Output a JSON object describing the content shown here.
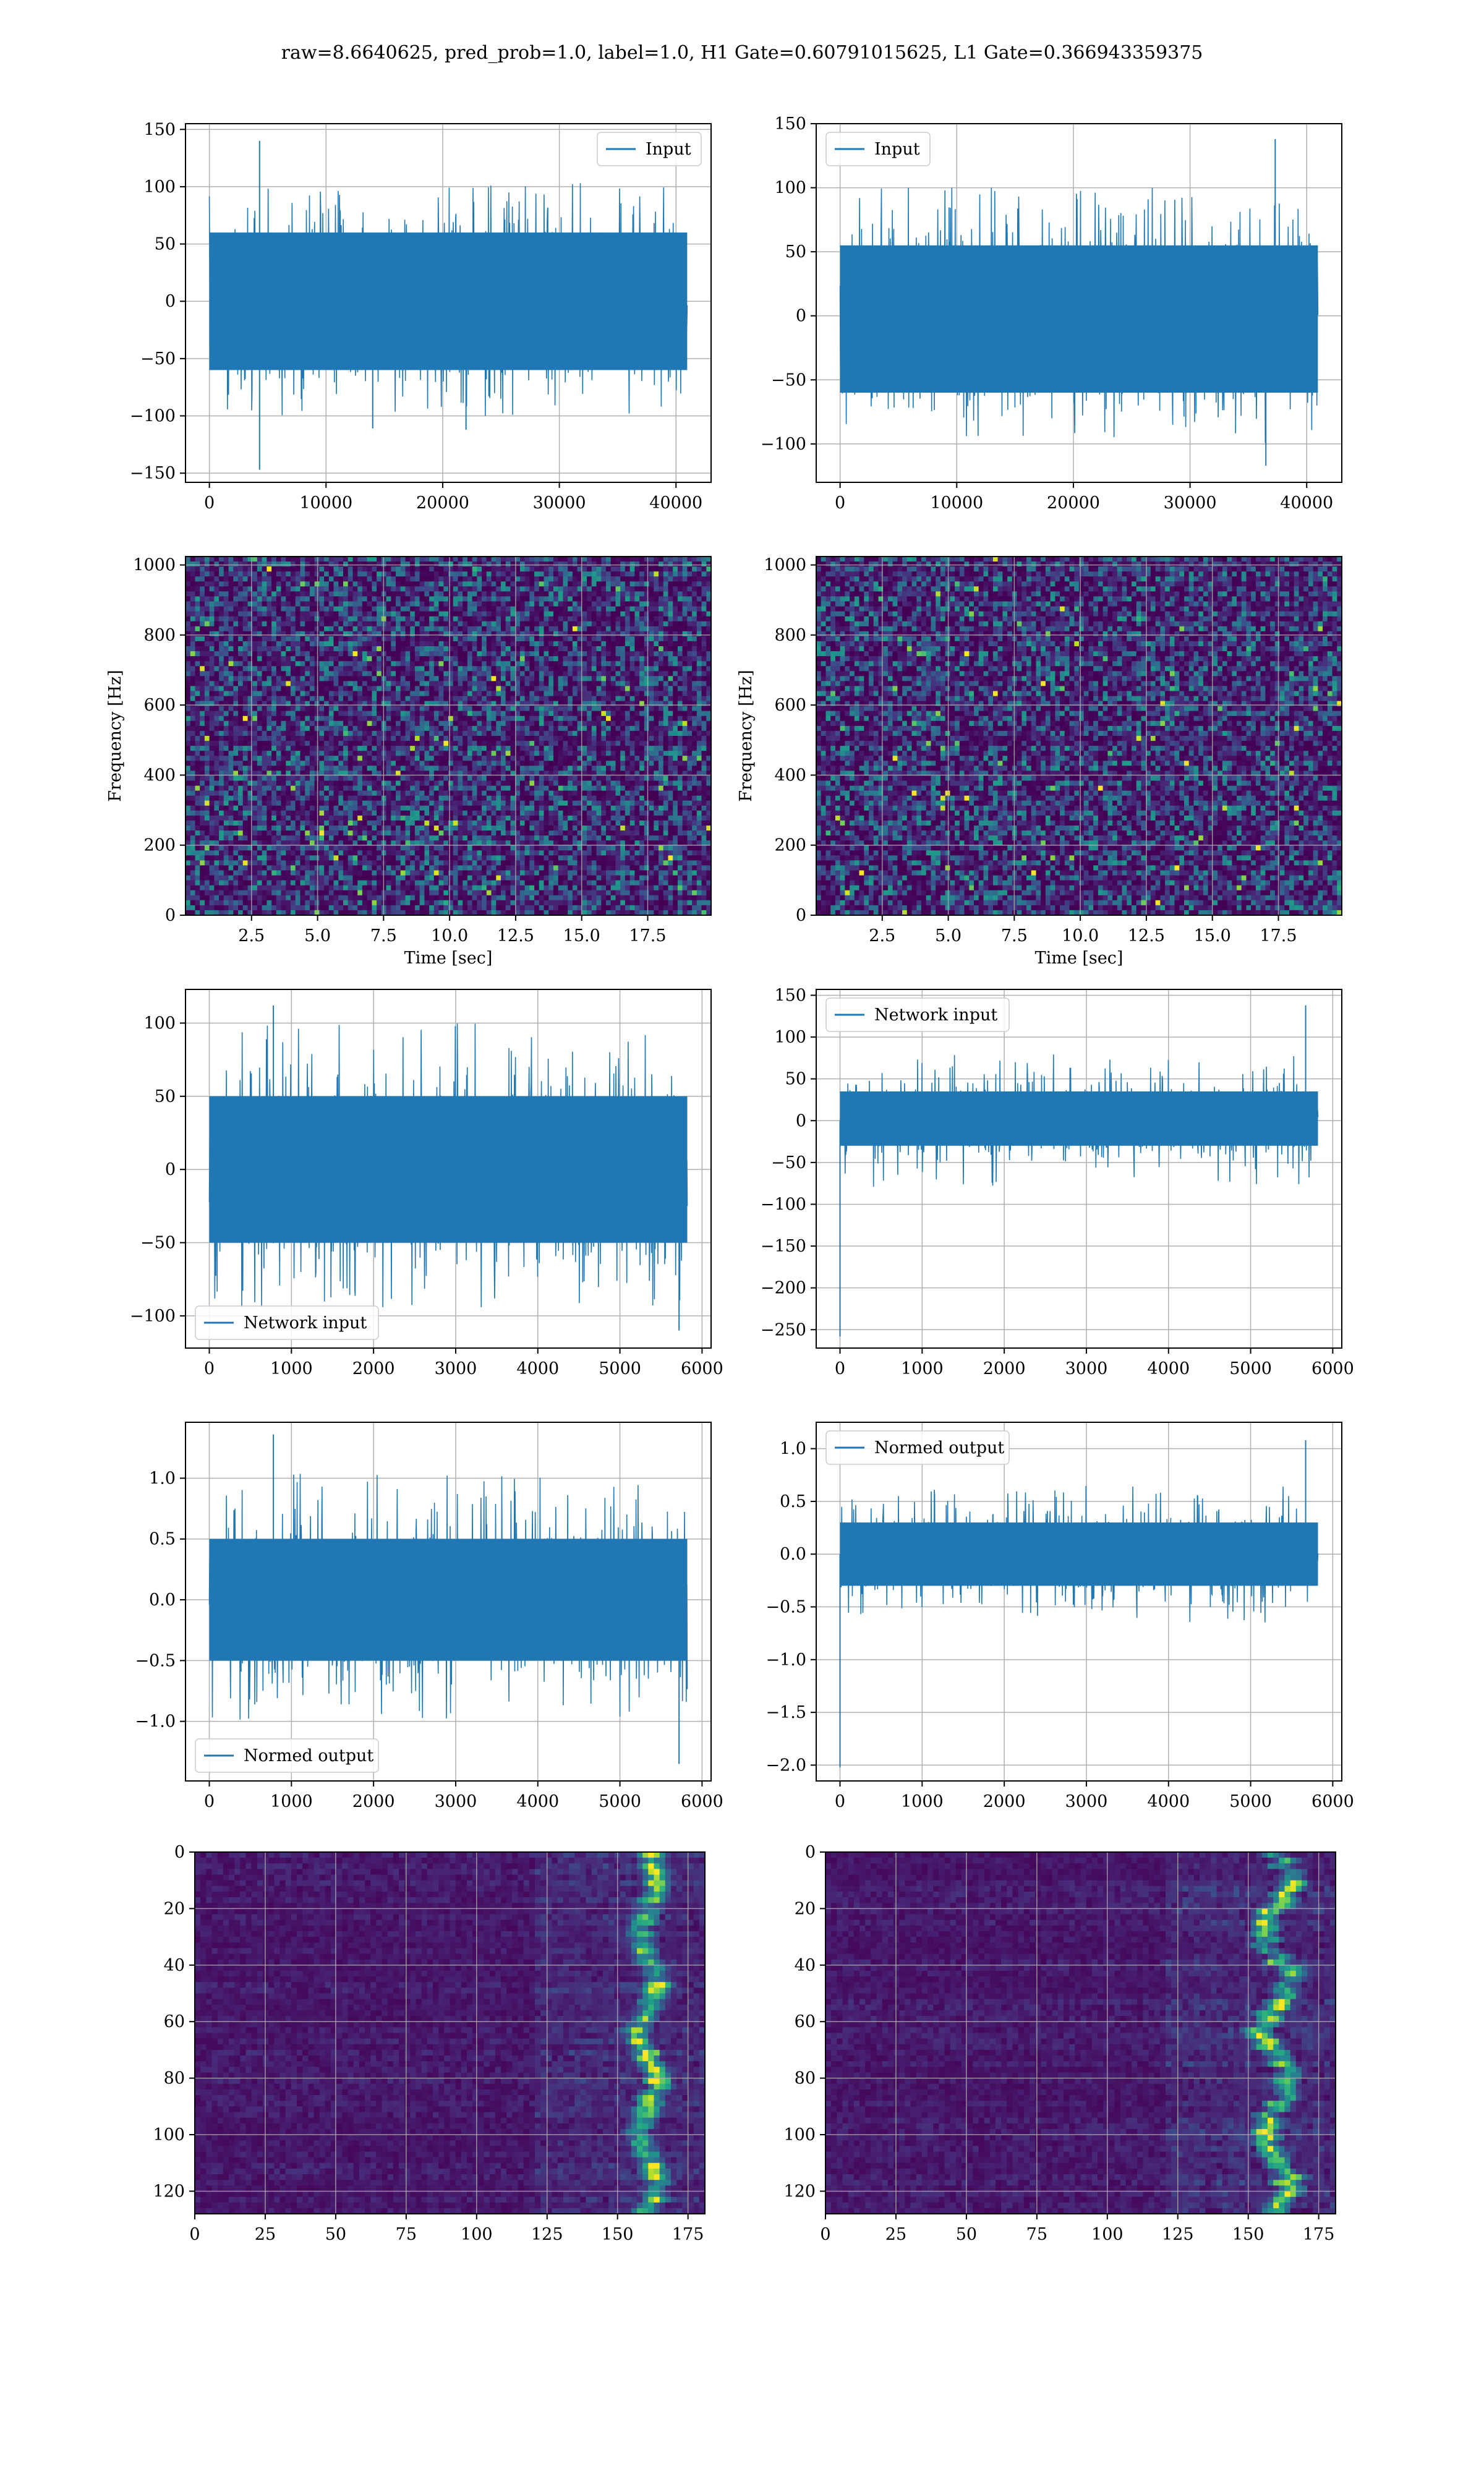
{
  "figure": {
    "title": "raw=8.6640625, pred_prob=1.0, label=1.0, H1 Gate=0.60791015625, L1 Gate=0.366943359375"
  },
  "colors": {
    "line": "#1f77b4",
    "grid": "#b0b0b0",
    "viridis_low": "#440154",
    "viridis_high": "#fde725"
  },
  "chart_data": [
    {
      "id": "h1-input",
      "type": "line",
      "title": "",
      "xlabel": "",
      "ylabel": "",
      "legend": {
        "label": "Input",
        "loc": "upper right"
      },
      "xlim": [
        -2048,
        43008
      ],
      "ylim": [
        -158,
        155
      ],
      "xticks": [
        0,
        10000,
        20000,
        30000,
        40000
      ],
      "yticks": [
        -150,
        -100,
        -50,
        0,
        50,
        100,
        150
      ],
      "series": [
        {
          "name": "Input",
          "x_range": [
            0,
            40960
          ],
          "envelope_low": [
            -60,
            -100
          ],
          "envelope_high": [
            60,
            105
          ],
          "outliers": [
            [
              4300,
              140
            ],
            [
              4300,
              -147
            ],
            [
              22000,
              -112
            ],
            [
              14000,
              -111
            ]
          ]
        }
      ],
      "grid": true
    },
    {
      "id": "l1-input",
      "type": "line",
      "title": "",
      "xlabel": "",
      "ylabel": "",
      "legend": {
        "label": "Input",
        "loc": "upper left"
      },
      "xlim": [
        -2048,
        43008
      ],
      "ylim": [
        -130,
        150
      ],
      "xticks": [
        0,
        10000,
        20000,
        30000,
        40000
      ],
      "yticks": [
        -100,
        -50,
        0,
        50,
        100,
        150
      ],
      "series": [
        {
          "name": "Input",
          "x_range": [
            0,
            40960
          ],
          "envelope_low": [
            -60,
            -100
          ],
          "envelope_high": [
            55,
            100
          ],
          "outliers": [
            [
              37300,
              138
            ],
            [
              36500,
              -117
            ]
          ]
        }
      ],
      "grid": true
    },
    {
      "id": "h1-spectrogram",
      "type": "heatmap",
      "title": "",
      "xlabel": "Time [sec]",
      "ylabel": "Frequency [Hz]",
      "xlim": [
        0,
        19.9
      ],
      "ylim": [
        0,
        1024
      ],
      "xticks": [
        2.5,
        5.0,
        7.5,
        10.0,
        12.5,
        15.0,
        17.5
      ],
      "yticks": [
        0,
        200,
        400,
        600,
        800,
        1000
      ],
      "colormap": "viridis",
      "grid": true
    },
    {
      "id": "l1-spectrogram",
      "type": "heatmap",
      "title": "",
      "xlabel": "Time [sec]",
      "ylabel": "Frequency [Hz]",
      "xlim": [
        0,
        19.9
      ],
      "ylim": [
        0,
        1024
      ],
      "xticks": [
        2.5,
        5.0,
        7.5,
        10.0,
        12.5,
        15.0,
        17.5
      ],
      "yticks": [
        0,
        200,
        400,
        600,
        800,
        1000
      ],
      "colormap": "viridis",
      "grid": true
    },
    {
      "id": "h1-network-input",
      "type": "line",
      "title": "",
      "xlabel": "",
      "ylabel": "",
      "legend": {
        "label": "Network input",
        "loc": "lower left"
      },
      "xlim": [
        -290,
        6110
      ],
      "ylim": [
        -122,
        123
      ],
      "xticks": [
        0,
        1000,
        2000,
        3000,
        4000,
        5000,
        6000
      ],
      "yticks": [
        -100,
        -50,
        0,
        50,
        100
      ],
      "series": [
        {
          "name": "Network input",
          "x_range": [
            0,
            5820
          ],
          "envelope_low": [
            -50,
            -95
          ],
          "envelope_high": [
            50,
            100
          ],
          "outliers": [
            [
              780,
              112
            ],
            [
              5720,
              -110
            ]
          ]
        }
      ],
      "grid": true
    },
    {
      "id": "l1-network-input",
      "type": "line",
      "title": "",
      "xlabel": "",
      "ylabel": "",
      "legend": {
        "label": "Network input",
        "loc": "upper left"
      },
      "xlim": [
        -290,
        6110
      ],
      "ylim": [
        -272,
        157
      ],
      "xticks": [
        0,
        1000,
        2000,
        3000,
        4000,
        5000,
        6000
      ],
      "yticks": [
        -250,
        -200,
        -150,
        -100,
        -50,
        0,
        50,
        100,
        150
      ],
      "series": [
        {
          "name": "Network input",
          "x_range": [
            0,
            5820
          ],
          "envelope_low": [
            -30,
            -80
          ],
          "envelope_high": [
            35,
            80
          ],
          "outliers": [
            [
              0,
              -258
            ],
            [
              5670,
              138
            ]
          ]
        }
      ],
      "grid": true
    },
    {
      "id": "h1-normed-output",
      "type": "line",
      "title": "",
      "xlabel": "",
      "ylabel": "",
      "legend": {
        "label": "Normed output",
        "loc": "lower left"
      },
      "xlim": [
        -290,
        6110
      ],
      "ylim": [
        -1.49,
        1.46
      ],
      "xticks": [
        0,
        1000,
        2000,
        3000,
        4000,
        5000,
        6000
      ],
      "yticks": [
        -1.0,
        -0.5,
        0.0,
        0.5,
        1.0
      ],
      "series": [
        {
          "name": "Normed output",
          "x_range": [
            0,
            5820
          ],
          "envelope_low": [
            -0.5,
            -1.0
          ],
          "envelope_high": [
            0.5,
            1.05
          ],
          "outliers": [
            [
              780,
              1.36
            ],
            [
              5720,
              -1.35
            ]
          ]
        }
      ],
      "grid": true
    },
    {
      "id": "l1-normed-output",
      "type": "line",
      "title": "",
      "xlabel": "",
      "ylabel": "",
      "legend": {
        "label": "Normed output",
        "loc": "upper left"
      },
      "xlim": [
        -290,
        6110
      ],
      "ylim": [
        -2.15,
        1.25
      ],
      "xticks": [
        0,
        1000,
        2000,
        3000,
        4000,
        5000,
        6000
      ],
      "yticks": [
        -2.0,
        -1.5,
        -1.0,
        -0.5,
        0.0,
        0.5,
        1.0
      ],
      "series": [
        {
          "name": "Normed output",
          "x_range": [
            0,
            5820
          ],
          "envelope_low": [
            -0.3,
            -0.65
          ],
          "envelope_high": [
            0.3,
            0.65
          ],
          "outliers": [
            [
              0,
              -2.02
            ],
            [
              5670,
              1.08
            ]
          ]
        }
      ],
      "grid": true
    },
    {
      "id": "h1-feature-map",
      "type": "heatmap",
      "title": "",
      "xlabel": "",
      "ylabel": "",
      "xlim": [
        0,
        181
      ],
      "ylim": [
        128,
        0
      ],
      "xticks": [
        0,
        25,
        50,
        75,
        100,
        125,
        150,
        175
      ],
      "yticks": [
        0,
        20,
        40,
        60,
        80,
        100,
        120
      ],
      "colormap": "viridis",
      "bright_band_x": [
        155,
        170
      ],
      "grid": true
    },
    {
      "id": "l1-feature-map",
      "type": "heatmap",
      "title": "",
      "xlabel": "",
      "ylabel": "",
      "xlim": [
        0,
        181
      ],
      "ylim": [
        128,
        0
      ],
      "xticks": [
        0,
        25,
        50,
        75,
        100,
        125,
        150,
        175
      ],
      "yticks": [
        0,
        20,
        40,
        60,
        80,
        100,
        120
      ],
      "colormap": "viridis",
      "bright_band_x": [
        150,
        175
      ],
      "grid": true
    }
  ]
}
